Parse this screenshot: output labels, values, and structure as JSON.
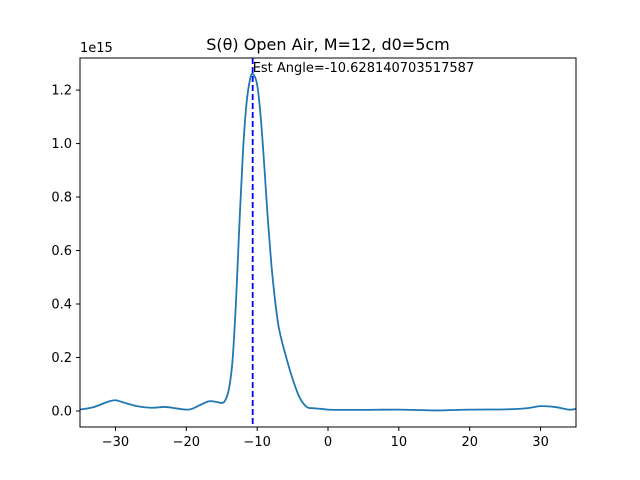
{
  "chart_data": {
    "type": "line",
    "title": "S(θ) Open Air, M=12, d0=5cm",
    "xlabel": "",
    "ylabel": "",
    "xlim": [
      -35,
      35
    ],
    "ylim": [
      -0.06,
      1.32
    ],
    "y_multiplier_label": "1e15",
    "x_ticks": [
      -30,
      -20,
      -10,
      0,
      10,
      20,
      30
    ],
    "x_tick_labels": [
      "−30",
      "−20",
      "−10",
      "0",
      "10",
      "20",
      "30"
    ],
    "y_ticks": [
      0.0,
      0.2,
      0.4,
      0.6,
      0.8,
      1.0,
      1.2
    ],
    "y_tick_labels": [
      "0.0",
      "0.2",
      "0.4",
      "0.6",
      "0.8",
      "1.0",
      "1.2"
    ],
    "grid": false,
    "series": [
      {
        "color": "#1f77b4",
        "x": [
          -35,
          -33,
          -31,
          -30,
          -29,
          -27,
          -25,
          -23,
          -21.5,
          -20,
          -19,
          -17,
          -16,
          -15,
          -14.5,
          -14,
          -13.5,
          -13,
          -12.5,
          -12,
          -11.5,
          -11,
          -10.6,
          -10,
          -9.5,
          -9,
          -8.5,
          -8,
          -7.5,
          -7,
          -6.5,
          -6,
          -5,
          -4,
          -3,
          -2,
          -1,
          0,
          2,
          5,
          10,
          15,
          20,
          25,
          28,
          30,
          32,
          34,
          35
        ],
        "y": [
          0.005,
          0.015,
          0.035,
          0.04,
          0.033,
          0.018,
          0.012,
          0.015,
          0.01,
          0.005,
          0.01,
          0.035,
          0.035,
          0.03,
          0.04,
          0.08,
          0.18,
          0.4,
          0.7,
          0.97,
          1.15,
          1.24,
          1.26,
          1.22,
          1.1,
          0.92,
          0.72,
          0.55,
          0.42,
          0.32,
          0.26,
          0.21,
          0.12,
          0.05,
          0.015,
          0.01,
          0.008,
          0.005,
          0.004,
          0.004,
          0.005,
          0.002,
          0.005,
          0.006,
          0.01,
          0.018,
          0.015,
          0.005,
          0.008
        ]
      }
    ],
    "vline": {
      "x": -10.628140703517587,
      "color": "#0000ff",
      "style": "dashed"
    },
    "annotation": {
      "text": "Est Angle=-10.628140703517587",
      "x": -10.628140703517587,
      "y": 1.26
    }
  }
}
